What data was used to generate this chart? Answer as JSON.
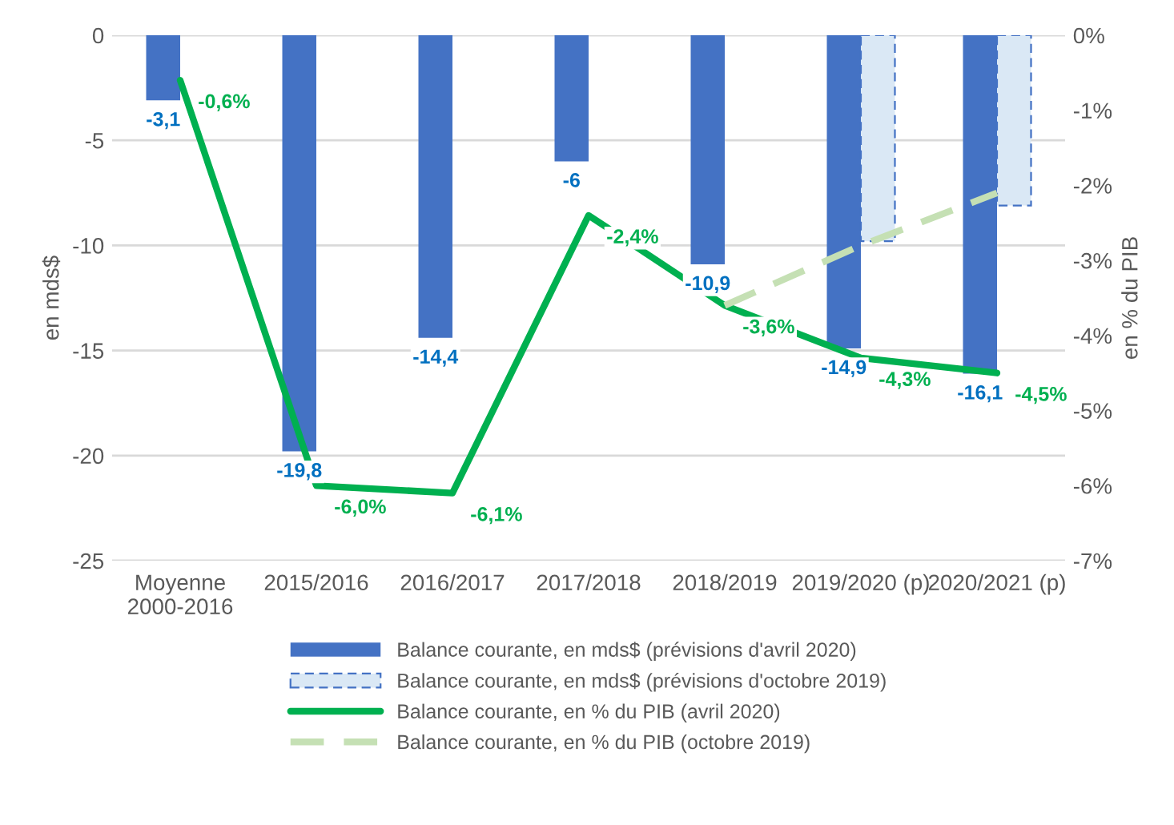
{
  "chart_data": {
    "type": "bar",
    "categories": [
      "Moyenne\n2000-2016",
      "2015/2016",
      "2016/2017",
      "2017/2018",
      "2018/2019",
      "2019/2020 (p)",
      "2020/2021 (p)"
    ],
    "ylabel": "en mds$",
    "y2label": "en % du PIB",
    "ylim": [
      -25,
      0
    ],
    "yticks": [
      -25,
      -20,
      -15,
      -10,
      -5,
      0
    ],
    "y2lim": [
      -7,
      0
    ],
    "y2ticks": [
      {
        "value": -7,
        "label": "-7%"
      },
      {
        "value": -6,
        "label": "-6%"
      },
      {
        "value": -5,
        "label": "-5%"
      },
      {
        "value": -4,
        "label": "-4%"
      },
      {
        "value": -3,
        "label": "-3%"
      },
      {
        "value": -2,
        "label": "-2%"
      },
      {
        "value": -1,
        "label": "-1%"
      },
      {
        "value": 0,
        "label": "0%"
      }
    ],
    "grid": "y",
    "legend": "bottom",
    "series": [
      {
        "name": "Balance courante, en mds$ (prévisions d'avril 2020)",
        "color": "#4472c4",
        "values": [
          -3.1,
          -19.8,
          -14.4,
          -6,
          -10.9,
          -14.9,
          -16.1
        ],
        "value_labels": [
          "-3,1",
          "-19,8",
          "-14,4",
          "-6",
          "-10,9",
          "-14,9",
          "-16,1"
        ]
      },
      {
        "name": "Balance courante, en mds$ (prévisions d'octobre 2019)",
        "color": "#dae8f5",
        "line_style": "dashed",
        "values": [
          null,
          null,
          null,
          null,
          null,
          -9.8,
          -8.1
        ]
      },
      {
        "name": "Balance courante, en % du PIB (avril 2020)",
        "type": "line",
        "axis": "y2",
        "color": "#00b050",
        "line_style": "solid",
        "values": [
          -0.6,
          -6.0,
          -6.1,
          -2.4,
          -3.6,
          -4.3,
          -4.5
        ],
        "value_labels": [
          "-0,6%",
          "-6,0%",
          "-6,1%",
          "-2,4%",
          "-3,6%",
          "-4,3%",
          "-4,5%"
        ]
      },
      {
        "name": "Balance courante, en % du PIB (octobre 2019)",
        "type": "line",
        "axis": "y2",
        "color": "#c5e0b4",
        "line_style": "dashed",
        "values": [
          null,
          null,
          null,
          null,
          -3.6,
          -2.8,
          -2.1
        ]
      }
    ]
  }
}
